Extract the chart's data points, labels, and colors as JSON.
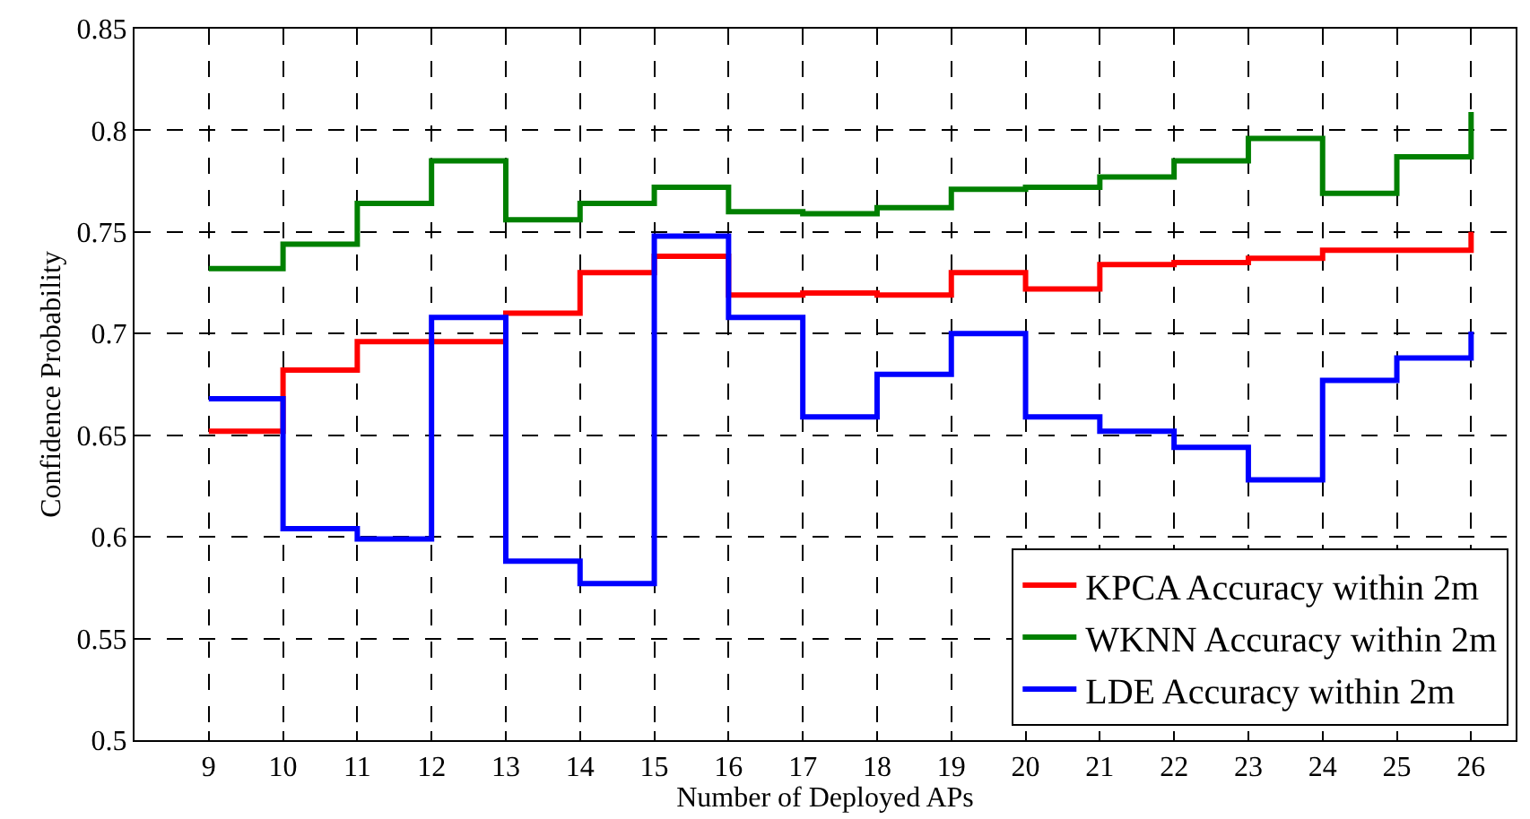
{
  "chart_data": {
    "type": "step",
    "xlabel": "Number of Deployed APs",
    "ylabel": "Confidence Probability",
    "x": [
      9,
      10,
      11,
      12,
      13,
      14,
      15,
      16,
      17,
      18,
      19,
      20,
      21,
      22,
      23,
      24,
      25,
      26
    ],
    "series": [
      {
        "name": "KPCA Accuracy within 2m",
        "color": "#ff0000",
        "values": [
          0.652,
          0.682,
          0.696,
          0.696,
          0.71,
          0.73,
          0.738,
          0.719,
          0.72,
          0.719,
          0.73,
          0.722,
          0.734,
          0.735,
          0.737,
          0.741,
          0.741,
          0.75
        ]
      },
      {
        "name": "WKNN Accuracy within 2m",
        "color": "#008000",
        "values": [
          0.732,
          0.744,
          0.764,
          0.785,
          0.756,
          0.764,
          0.772,
          0.76,
          0.759,
          0.762,
          0.771,
          0.772,
          0.777,
          0.785,
          0.796,
          0.769,
          0.787,
          0.809
        ]
      },
      {
        "name": "LDE Accuracy within 2m",
        "color": "#0000ff",
        "values": [
          0.668,
          0.604,
          0.599,
          0.708,
          0.588,
          0.577,
          0.748,
          0.708,
          0.659,
          0.68,
          0.7,
          0.659,
          0.652,
          0.644,
          0.628,
          0.677,
          0.688,
          0.701
        ]
      }
    ],
    "xlim": [
      8,
      26.6
    ],
    "xticks": [
      9,
      10,
      11,
      12,
      13,
      14,
      15,
      16,
      17,
      18,
      19,
      20,
      21,
      22,
      23,
      24,
      25,
      26
    ],
    "ylim": [
      0.5,
      0.85
    ],
    "yticks": [
      0.5,
      0.55,
      0.6,
      0.65,
      0.7,
      0.75,
      0.8,
      0.85
    ],
    "grid": true,
    "legend": "bottom right",
    "line_style": "solid",
    "marker": "none"
  }
}
